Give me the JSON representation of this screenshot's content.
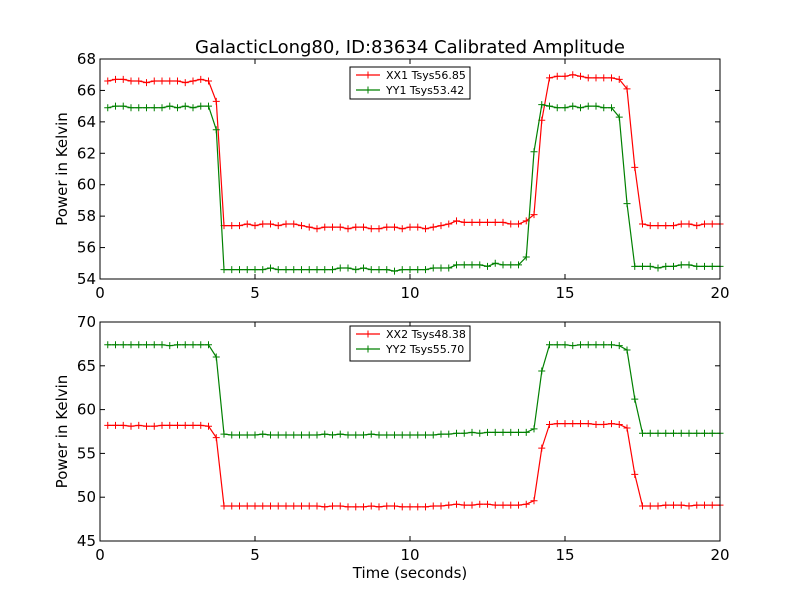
{
  "chart_data": [
    {
      "type": "line",
      "title": "GalacticLong80, ID:83634 Calibrated Amplitude",
      "xlabel": "",
      "ylabel": "Power in Kelvin",
      "xlim": [
        0,
        20
      ],
      "ylim": [
        54,
        68
      ],
      "xticks": [
        "0",
        "5",
        "10",
        "15",
        "20"
      ],
      "yticks": [
        "54",
        "56",
        "58",
        "60",
        "62",
        "64",
        "66",
        "68"
      ],
      "legend": "top-center",
      "grid": false,
      "series": [
        {
          "name": "XX1 Tsys56.85",
          "color": "#ff0000",
          "x": [
            0.25,
            0.5,
            0.75,
            1.0,
            1.25,
            1.5,
            1.75,
            2.0,
            2.25,
            2.5,
            2.75,
            3.0,
            3.25,
            3.5,
            3.75,
            4.0,
            4.25,
            4.5,
            4.75,
            5.0,
            5.25,
            5.5,
            5.75,
            6.0,
            6.25,
            6.5,
            6.75,
            7.0,
            7.25,
            7.5,
            7.75,
            8.0,
            8.25,
            8.5,
            8.75,
            9.0,
            9.25,
            9.5,
            9.75,
            10.0,
            10.25,
            10.5,
            10.75,
            11.0,
            11.25,
            11.5,
            11.75,
            12.0,
            12.25,
            12.5,
            12.75,
            13.0,
            13.25,
            13.5,
            13.75,
            14.0,
            14.25,
            14.5,
            14.75,
            15.0,
            15.25,
            15.5,
            15.75,
            16.0,
            16.25,
            16.5,
            16.75,
            17.0,
            17.25,
            17.5,
            17.75,
            18.0,
            18.25,
            18.5,
            18.75,
            19.0,
            19.25,
            19.5,
            19.75,
            20.0
          ],
          "y": [
            66.6,
            66.7,
            66.7,
            66.6,
            66.6,
            66.5,
            66.6,
            66.6,
            66.6,
            66.6,
            66.5,
            66.6,
            66.7,
            66.6,
            65.3,
            57.4,
            57.4,
            57.4,
            57.5,
            57.4,
            57.5,
            57.5,
            57.4,
            57.5,
            57.5,
            57.4,
            57.3,
            57.2,
            57.3,
            57.3,
            57.3,
            57.2,
            57.3,
            57.3,
            57.2,
            57.2,
            57.3,
            57.3,
            57.2,
            57.3,
            57.3,
            57.2,
            57.3,
            57.4,
            57.5,
            57.7,
            57.6,
            57.6,
            57.6,
            57.6,
            57.6,
            57.6,
            57.5,
            57.5,
            57.7,
            58.1,
            64.1,
            66.8,
            66.9,
            66.9,
            67.0,
            66.9,
            66.8,
            66.8,
            66.8,
            66.8,
            66.7,
            66.1,
            61.1,
            57.5,
            57.4,
            57.4,
            57.4,
            57.4,
            57.5,
            57.5,
            57.4,
            57.5,
            57.5,
            57.5
          ]
        },
        {
          "name": "YY1 Tsys53.42",
          "color": "#008000",
          "x": [
            0.25,
            0.5,
            0.75,
            1.0,
            1.25,
            1.5,
            1.75,
            2.0,
            2.25,
            2.5,
            2.75,
            3.0,
            3.25,
            3.5,
            3.75,
            4.0,
            4.25,
            4.5,
            4.75,
            5.0,
            5.25,
            5.5,
            5.75,
            6.0,
            6.25,
            6.5,
            6.75,
            7.0,
            7.25,
            7.5,
            7.75,
            8.0,
            8.25,
            8.5,
            8.75,
            9.0,
            9.25,
            9.5,
            9.75,
            10.0,
            10.25,
            10.5,
            10.75,
            11.0,
            11.25,
            11.5,
            11.75,
            12.0,
            12.25,
            12.5,
            12.75,
            13.0,
            13.25,
            13.5,
            13.75,
            14.0,
            14.25,
            14.5,
            14.75,
            15.0,
            15.25,
            15.5,
            15.75,
            16.0,
            16.25,
            16.5,
            16.75,
            17.0,
            17.25,
            17.5,
            17.75,
            18.0,
            18.25,
            18.5,
            18.75,
            19.0,
            19.25,
            19.5,
            19.75,
            20.0
          ],
          "y": [
            64.9,
            65.0,
            65.0,
            64.9,
            64.9,
            64.9,
            64.9,
            64.9,
            65.0,
            64.9,
            65.0,
            64.9,
            65.0,
            65.0,
            63.5,
            54.6,
            54.6,
            54.6,
            54.6,
            54.6,
            54.6,
            54.7,
            54.6,
            54.6,
            54.6,
            54.6,
            54.6,
            54.6,
            54.6,
            54.6,
            54.7,
            54.7,
            54.6,
            54.7,
            54.6,
            54.6,
            54.6,
            54.5,
            54.6,
            54.6,
            54.6,
            54.6,
            54.7,
            54.7,
            54.7,
            54.9,
            54.9,
            54.9,
            54.9,
            54.8,
            55.0,
            54.9,
            54.9,
            54.9,
            55.4,
            62.1,
            65.1,
            65.0,
            64.9,
            64.9,
            65.0,
            64.9,
            65.0,
            65.0,
            64.9,
            64.9,
            64.3,
            58.8,
            54.8,
            54.8,
            54.8,
            54.7,
            54.8,
            54.8,
            54.9,
            54.9,
            54.8,
            54.8,
            54.8,
            54.8
          ]
        }
      ]
    },
    {
      "type": "line",
      "title": "",
      "xlabel": "Time (seconds)",
      "ylabel": "Power in Kelvin",
      "xlim": [
        0,
        20
      ],
      "ylim": [
        45,
        70
      ],
      "xticks": [
        "0",
        "5",
        "10",
        "15",
        "20"
      ],
      "yticks": [
        "45",
        "50",
        "55",
        "60",
        "65",
        "70"
      ],
      "legend": "top-center",
      "grid": false,
      "series": [
        {
          "name": "XX2 Tsys48.38",
          "color": "#ff0000",
          "x": [
            0.25,
            0.5,
            0.75,
            1.0,
            1.25,
            1.5,
            1.75,
            2.0,
            2.25,
            2.5,
            2.75,
            3.0,
            3.25,
            3.5,
            3.75,
            4.0,
            4.25,
            4.5,
            4.75,
            5.0,
            5.25,
            5.5,
            5.75,
            6.0,
            6.25,
            6.5,
            6.75,
            7.0,
            7.25,
            7.5,
            7.75,
            8.0,
            8.25,
            8.5,
            8.75,
            9.0,
            9.25,
            9.5,
            9.75,
            10.0,
            10.25,
            10.5,
            10.75,
            11.0,
            11.25,
            11.5,
            11.75,
            12.0,
            12.25,
            12.5,
            12.75,
            13.0,
            13.25,
            13.5,
            13.75,
            14.0,
            14.25,
            14.5,
            14.75,
            15.0,
            15.25,
            15.5,
            15.75,
            16.0,
            16.25,
            16.5,
            16.75,
            17.0,
            17.25,
            17.5,
            17.75,
            18.0,
            18.25,
            18.5,
            18.75,
            19.0,
            19.25,
            19.5,
            19.75,
            20.0
          ],
          "y": [
            58.2,
            58.2,
            58.2,
            58.1,
            58.2,
            58.1,
            58.1,
            58.2,
            58.2,
            58.2,
            58.2,
            58.2,
            58.2,
            58.1,
            56.8,
            49.0,
            49.0,
            49.0,
            49.0,
            49.0,
            49.0,
            49.0,
            49.0,
            49.0,
            49.0,
            49.0,
            49.0,
            49.0,
            48.9,
            49.0,
            49.0,
            48.9,
            48.9,
            48.9,
            49.0,
            48.9,
            49.0,
            49.0,
            48.9,
            48.9,
            48.9,
            48.9,
            49.0,
            49.0,
            49.1,
            49.2,
            49.1,
            49.1,
            49.2,
            49.2,
            49.1,
            49.1,
            49.1,
            49.1,
            49.2,
            49.6,
            55.6,
            58.3,
            58.4,
            58.4,
            58.4,
            58.4,
            58.4,
            58.3,
            58.3,
            58.4,
            58.3,
            57.9,
            52.6,
            49.0,
            49.0,
            49.0,
            49.1,
            49.1,
            49.1,
            49.0,
            49.1,
            49.1,
            49.1,
            49.1
          ]
        },
        {
          "name": "YY2 Tsys55.70",
          "color": "#008000",
          "x": [
            0.25,
            0.5,
            0.75,
            1.0,
            1.25,
            1.5,
            1.75,
            2.0,
            2.25,
            2.5,
            2.75,
            3.0,
            3.25,
            3.5,
            3.75,
            4.0,
            4.25,
            4.5,
            4.75,
            5.0,
            5.25,
            5.5,
            5.75,
            6.0,
            6.25,
            6.5,
            6.75,
            7.0,
            7.25,
            7.5,
            7.75,
            8.0,
            8.25,
            8.5,
            8.75,
            9.0,
            9.25,
            9.5,
            9.75,
            10.0,
            10.25,
            10.5,
            10.75,
            11.0,
            11.25,
            11.5,
            11.75,
            12.0,
            12.25,
            12.5,
            12.75,
            13.0,
            13.25,
            13.5,
            13.75,
            14.0,
            14.25,
            14.5,
            14.75,
            15.0,
            15.25,
            15.5,
            15.75,
            16.0,
            16.25,
            16.5,
            16.75,
            17.0,
            17.25,
            17.5,
            17.75,
            18.0,
            18.25,
            18.5,
            18.75,
            19.0,
            19.25,
            19.5,
            19.75,
            20.0
          ],
          "y": [
            67.4,
            67.4,
            67.4,
            67.4,
            67.4,
            67.4,
            67.4,
            67.4,
            67.3,
            67.4,
            67.4,
            67.4,
            67.4,
            67.4,
            66.0,
            57.2,
            57.1,
            57.1,
            57.1,
            57.1,
            57.2,
            57.1,
            57.1,
            57.1,
            57.1,
            57.1,
            57.1,
            57.1,
            57.2,
            57.1,
            57.2,
            57.1,
            57.1,
            57.1,
            57.2,
            57.1,
            57.1,
            57.1,
            57.1,
            57.1,
            57.1,
            57.1,
            57.1,
            57.2,
            57.2,
            57.3,
            57.3,
            57.4,
            57.3,
            57.4,
            57.4,
            57.4,
            57.4,
            57.4,
            57.4,
            57.8,
            64.4,
            67.4,
            67.4,
            67.4,
            67.3,
            67.4,
            67.4,
            67.4,
            67.4,
            67.4,
            67.3,
            66.8,
            61.2,
            57.3,
            57.3,
            57.3,
            57.3,
            57.3,
            57.3,
            57.3,
            57.3,
            57.3,
            57.3,
            57.3
          ]
        }
      ]
    }
  ]
}
